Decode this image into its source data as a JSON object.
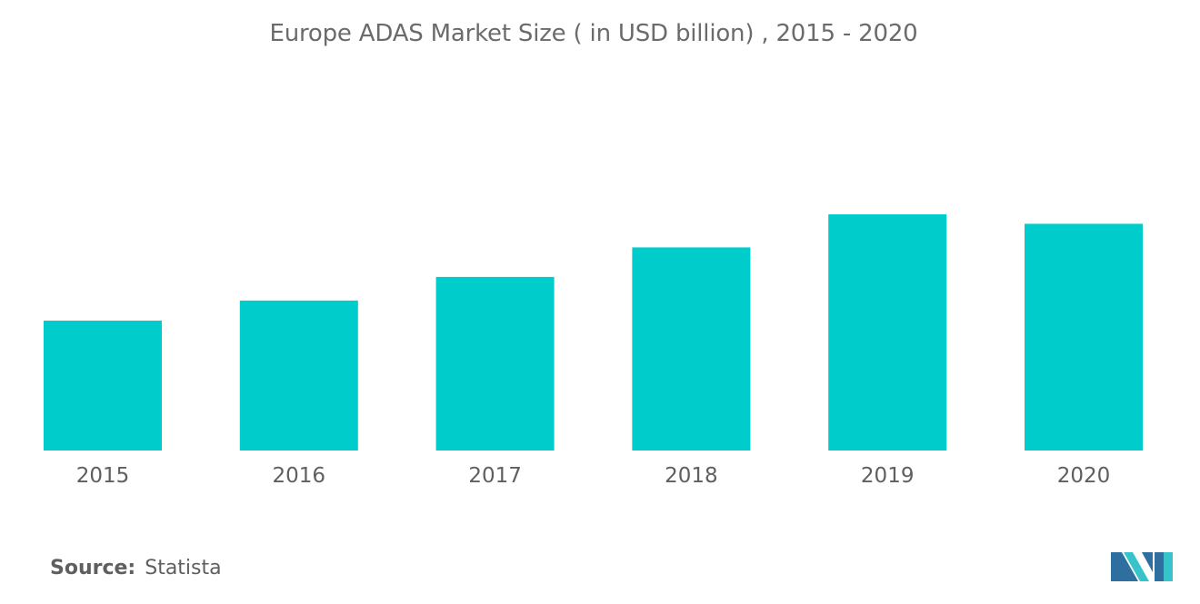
{
  "chart_data": {
    "type": "bar",
    "title": "Europe ADAS Market Size ( in USD billion) , 2015 - 2020",
    "categories": [
      "2015",
      "2016",
      "2017",
      "2018",
      "2019",
      "2020"
    ],
    "values": [
      5.5,
      6.35,
      7.35,
      8.6,
      10.0,
      9.6
    ],
    "ylim": [
      0,
      12
    ],
    "grid": false,
    "legend": "none",
    "bar_color": "#00cccc"
  },
  "source": {
    "label": "Source:",
    "value": "Statista"
  },
  "colors": {
    "bar": "#00cccc",
    "text": "#5f5f5f",
    "logo_dark": "#2f6f9f",
    "logo_light": "#36c3c9"
  }
}
